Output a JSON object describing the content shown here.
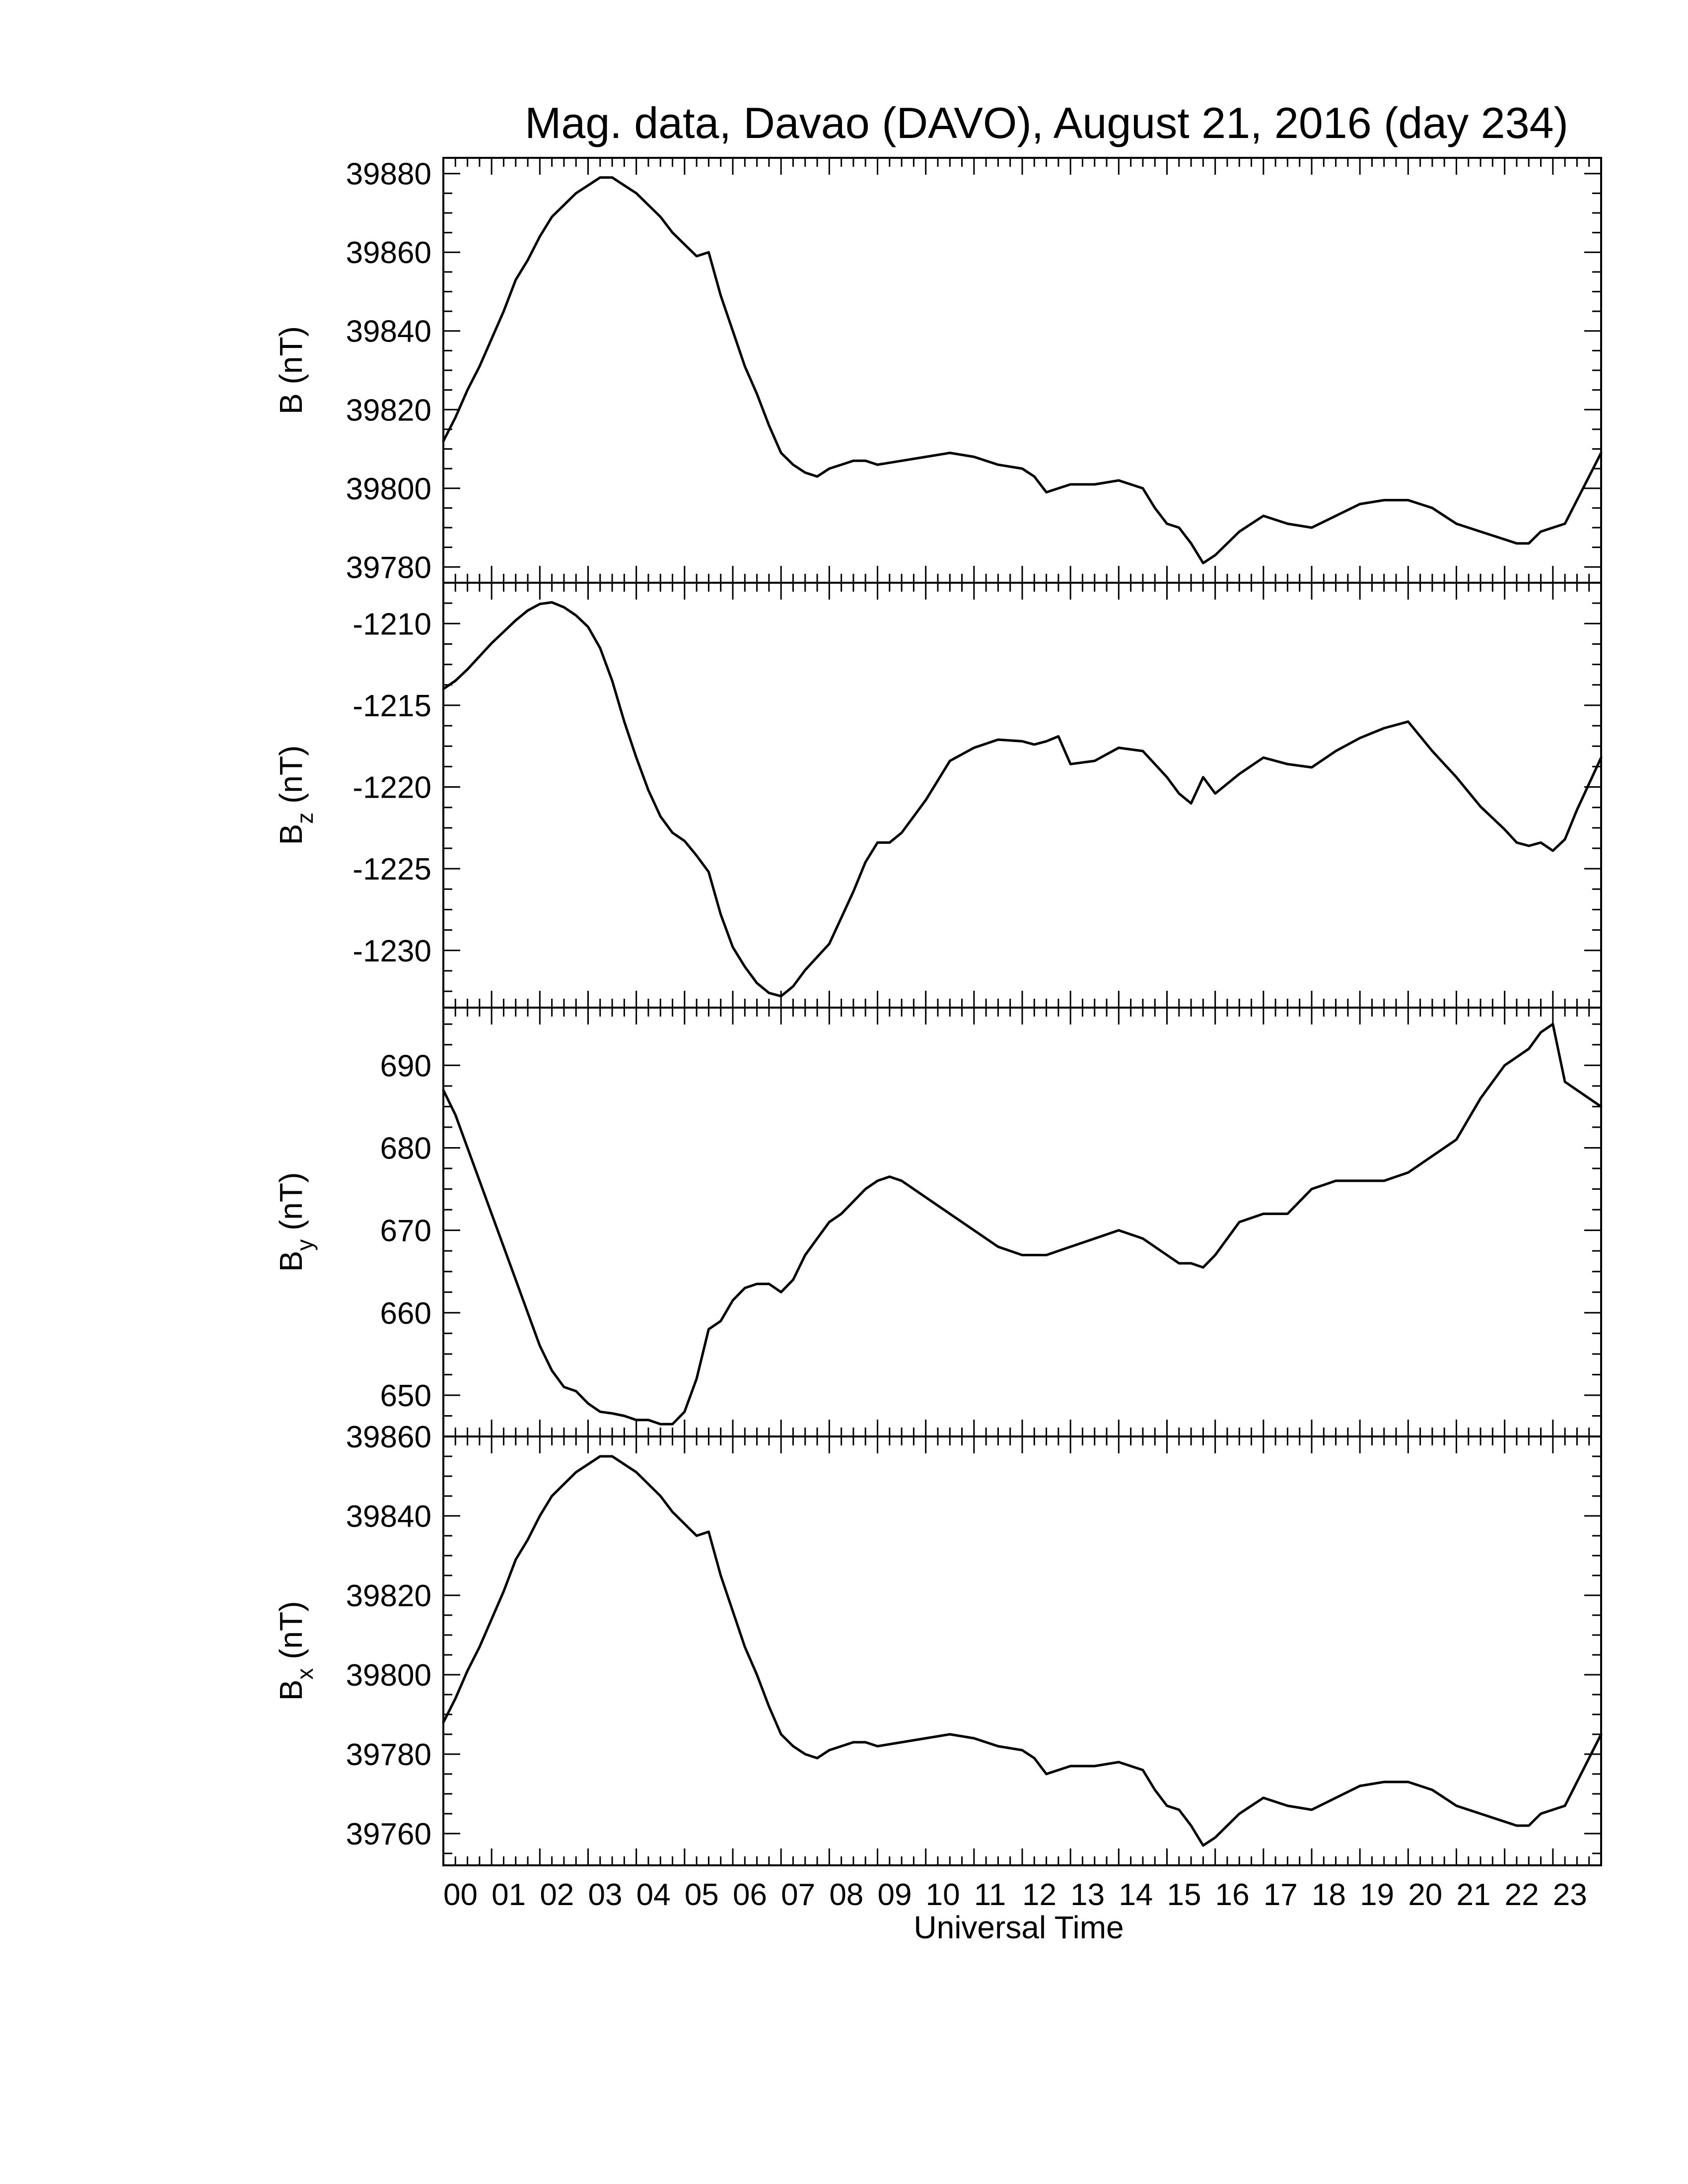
{
  "chart_data": {
    "type": "line",
    "title": "Mag. data, Davao (DAVO), August 21, 2016 (day 234)",
    "xlabel": "Universal Time",
    "xlim": [
      0,
      24
    ],
    "x_tick_labels": [
      "00",
      "01",
      "02",
      "03",
      "04",
      "05",
      "06",
      "07",
      "08",
      "09",
      "10",
      "11",
      "12",
      "13",
      "14",
      "15",
      "16",
      "17",
      "18",
      "19",
      "20",
      "21",
      "22",
      "23"
    ],
    "panels": [
      {
        "key": "B",
        "ylabel_main": "B",
        "ylabel_sub": "",
        "ylabel_unit": " (nT)",
        "ylim": [
          39776,
          39884
        ],
        "y_ticks": [
          39780,
          39800,
          39820,
          39840,
          39860,
          39880
        ],
        "y_tick_labels": [
          "39780",
          "39800",
          "39820",
          "39840",
          "39860",
          "39880"
        ],
        "x": [
          0,
          0.25,
          0.5,
          0.75,
          1,
          1.25,
          1.5,
          1.75,
          2,
          2.25,
          2.5,
          2.75,
          3,
          3.25,
          3.5,
          3.75,
          4,
          4.25,
          4.5,
          4.75,
          5,
          5.25,
          5.5,
          5.75,
          6,
          6.25,
          6.5,
          6.75,
          7,
          7.25,
          7.5,
          7.75,
          8,
          8.25,
          8.5,
          8.75,
          9,
          9.5,
          10,
          10.5,
          11,
          11.5,
          12,
          12.25,
          12.5,
          12.75,
          13,
          13.5,
          14,
          14.5,
          14.75,
          15,
          15.25,
          15.5,
          15.75,
          16,
          16.5,
          17,
          17.5,
          18,
          18.5,
          19,
          19.5,
          20,
          20.5,
          21,
          21.5,
          22,
          22.25,
          22.5,
          22.75,
          23,
          23.25,
          23.5,
          23.75,
          24
        ],
        "y": [
          39812,
          39818,
          39825,
          39831,
          39838,
          39845,
          39853,
          39858,
          39864,
          39869,
          39872,
          39875,
          39877,
          39879,
          39879,
          39877,
          39875,
          39872,
          39869,
          39865,
          39862,
          39859,
          39860,
          39849,
          39840,
          39831,
          39824,
          39816,
          39809,
          39806,
          39804,
          39803,
          39805,
          39806,
          39807,
          39807,
          39806,
          39807,
          39808,
          39809,
          39808,
          39806,
          39805,
          39803,
          39799,
          39800,
          39801,
          39801,
          39802,
          39800,
          39795,
          39791,
          39790,
          39786,
          39781,
          39783,
          39789,
          39793,
          39791,
          39790,
          39793,
          39796,
          39797,
          39797,
          39795,
          39791,
          39789,
          39787,
          39786,
          39786,
          39789,
          39790,
          39791,
          39797,
          39803,
          39809
        ]
      },
      {
        "key": "Bz",
        "ylabel_main": "B",
        "ylabel_sub": "z",
        "ylabel_unit": " (nT)",
        "ylim": [
          -1233.5,
          -1207.5
        ],
        "y_ticks": [
          -1230,
          -1225,
          -1220,
          -1215,
          -1210
        ],
        "y_tick_labels": [
          "-1230",
          "-1225",
          "-1220",
          "-1215",
          "-1210"
        ],
        "x": [
          0,
          0.25,
          0.5,
          0.75,
          1,
          1.25,
          1.5,
          1.75,
          2,
          2.25,
          2.5,
          2.75,
          3,
          3.25,
          3.5,
          3.75,
          4,
          4.25,
          4.5,
          4.75,
          5,
          5.25,
          5.5,
          5.75,
          6,
          6.25,
          6.5,
          6.75,
          7,
          7.25,
          7.5,
          7.75,
          8,
          8.25,
          8.5,
          8.75,
          9,
          9.25,
          9.5,
          9.75,
          10,
          10.25,
          10.5,
          11,
          11.5,
          12,
          12.25,
          12.5,
          12.75,
          13,
          13.5,
          14,
          14.5,
          14.75,
          15,
          15.25,
          15.5,
          15.75,
          16,
          16.5,
          17,
          17.5,
          18,
          18.5,
          19,
          19.5,
          20,
          20.5,
          21,
          21.5,
          22,
          22.25,
          22.5,
          22.75,
          23,
          23.25,
          23.5,
          24
        ],
        "y": [
          -1214,
          -1213.5,
          -1212.8,
          -1212,
          -1211.2,
          -1210.5,
          -1209.8,
          -1209.2,
          -1208.8,
          -1208.7,
          -1209,
          -1209.5,
          -1210.2,
          -1211.5,
          -1213.5,
          -1216,
          -1218.2,
          -1220.2,
          -1221.8,
          -1222.8,
          -1223.3,
          -1224.2,
          -1225.2,
          -1227.8,
          -1229.8,
          -1231,
          -1232,
          -1232.6,
          -1232.8,
          -1232.2,
          -1231.2,
          -1230.4,
          -1229.6,
          -1228,
          -1226.4,
          -1224.6,
          -1223.4,
          -1223.4,
          -1222.8,
          -1221.8,
          -1220.8,
          -1219.6,
          -1218.4,
          -1217.6,
          -1217.1,
          -1217.2,
          -1217.4,
          -1217.2,
          -1216.9,
          -1218.6,
          -1218.4,
          -1217.6,
          -1217.8,
          -1218.6,
          -1219.4,
          -1220.4,
          -1221,
          -1219.4,
          -1220.4,
          -1219.2,
          -1218.2,
          -1218.6,
          -1218.8,
          -1217.8,
          -1217,
          -1216.4,
          -1216,
          -1217.8,
          -1219.4,
          -1221.2,
          -1222.6,
          -1223.4,
          -1223.6,
          -1223.4,
          -1223.9,
          -1223.2,
          -1221.4,
          -1218.2
        ]
      },
      {
        "key": "By",
        "ylabel_main": "B",
        "ylabel_sub": "y",
        "ylabel_unit": " (nT)",
        "ylim": [
          645,
          697
        ],
        "y_ticks": [
          650,
          660,
          670,
          680,
          690
        ],
        "y_tick_labels": [
          "650",
          "660",
          "670",
          "680",
          "690"
        ],
        "x": [
          0,
          0.25,
          0.5,
          0.75,
          1,
          1.25,
          1.5,
          1.75,
          2,
          2.25,
          2.5,
          2.75,
          3,
          3.25,
          3.5,
          3.75,
          4,
          4.25,
          4.5,
          4.75,
          5,
          5.25,
          5.5,
          5.75,
          6,
          6.25,
          6.5,
          6.75,
          7,
          7.25,
          7.5,
          7.75,
          8,
          8.25,
          8.5,
          8.75,
          9,
          9.25,
          9.5,
          10,
          10.5,
          11,
          11.5,
          12,
          12.5,
          13,
          13.5,
          14,
          14.5,
          15,
          15.25,
          15.5,
          15.75,
          16,
          16.5,
          17,
          17.5,
          18,
          18.5,
          19,
          19.5,
          20,
          20.5,
          21,
          21.5,
          22,
          22.25,
          22.5,
          22.75,
          23,
          23.25,
          23.5,
          24
        ],
        "y": [
          687,
          684,
          680,
          676,
          672,
          668,
          664,
          660,
          656,
          653,
          651,
          650.5,
          649,
          648,
          647.8,
          647.5,
          647,
          647,
          646.5,
          646.5,
          648,
          652,
          658,
          659,
          661.5,
          663,
          663.5,
          663.5,
          662.5,
          664,
          667,
          669,
          671,
          672,
          673.5,
          675,
          676,
          676.5,
          676,
          674,
          672,
          670,
          668,
          667,
          667,
          668,
          669,
          670,
          669,
          667,
          666,
          666,
          665.5,
          667,
          671,
          672,
          672,
          675,
          676,
          676,
          676,
          677,
          679,
          681,
          686,
          690,
          691,
          692,
          694,
          695,
          688,
          687,
          685
        ]
      },
      {
        "key": "Bx",
        "ylabel_main": "B",
        "ylabel_sub": "x",
        "ylabel_unit": " (nT)",
        "ylim": [
          39752,
          39860
        ],
        "y_ticks": [
          39760,
          39780,
          39800,
          39820,
          39840,
          39860
        ],
        "y_tick_labels": [
          "39760",
          "39780",
          "39800",
          "39820",
          "39840",
          "39860"
        ],
        "x": [
          0,
          0.25,
          0.5,
          0.75,
          1,
          1.25,
          1.5,
          1.75,
          2,
          2.25,
          2.5,
          2.75,
          3,
          3.25,
          3.5,
          3.75,
          4,
          4.25,
          4.5,
          4.75,
          5,
          5.25,
          5.5,
          5.75,
          6,
          6.25,
          6.5,
          6.75,
          7,
          7.25,
          7.5,
          7.75,
          8,
          8.25,
          8.5,
          8.75,
          9,
          9.5,
          10,
          10.5,
          11,
          11.5,
          12,
          12.25,
          12.5,
          12.75,
          13,
          13.5,
          14,
          14.5,
          14.75,
          15,
          15.25,
          15.5,
          15.75,
          16,
          16.5,
          17,
          17.5,
          18,
          18.5,
          19,
          19.5,
          20,
          20.5,
          21,
          21.5,
          22,
          22.25,
          22.5,
          22.75,
          23,
          23.25,
          23.5,
          23.75,
          24
        ],
        "y": [
          39788,
          39794,
          39801,
          39807,
          39814,
          39821,
          39829,
          39834,
          39840,
          39845,
          39848,
          39851,
          39853,
          39855,
          39855,
          39853,
          39851,
          39848,
          39845,
          39841,
          39838,
          39835,
          39836,
          39825,
          39816,
          39807,
          39800,
          39792,
          39785,
          39782,
          39780,
          39779,
          39781,
          39782,
          39783,
          39783,
          39782,
          39783,
          39784,
          39785,
          39784,
          39782,
          39781,
          39779,
          39775,
          39776,
          39777,
          39777,
          39778,
          39776,
          39771,
          39767,
          39766,
          39762,
          39757,
          39759,
          39765,
          39769,
          39767,
          39766,
          39769,
          39772,
          39773,
          39773,
          39771,
          39767,
          39765,
          39763,
          39762,
          39762,
          39765,
          39766,
          39767,
          39773,
          39779,
          39785
        ]
      }
    ]
  }
}
